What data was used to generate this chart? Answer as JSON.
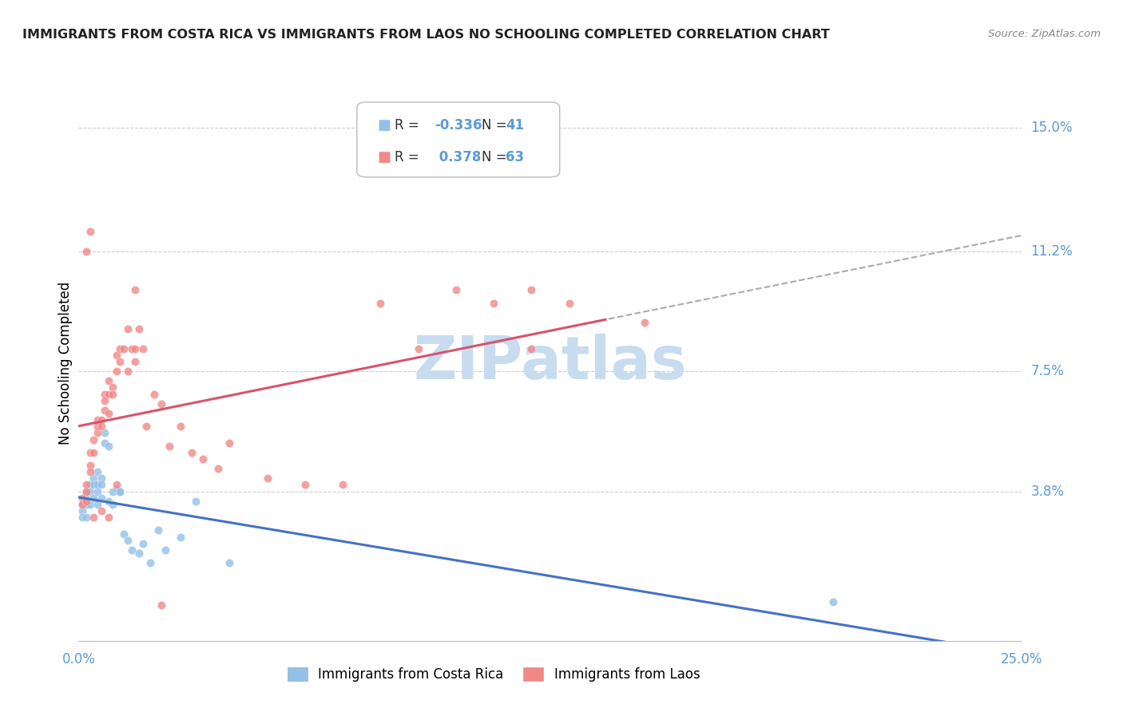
{
  "title": "IMMIGRANTS FROM COSTA RICA VS IMMIGRANTS FROM LAOS NO SCHOOLING COMPLETED CORRELATION CHART",
  "source": "Source: ZipAtlas.com",
  "ylabel": "No Schooling Completed",
  "yticks": [
    "3.8%",
    "7.5%",
    "11.2%",
    "15.0%"
  ],
  "ytick_vals": [
    0.038,
    0.075,
    0.112,
    0.15
  ],
  "xmin": 0.0,
  "xmax": 0.25,
  "ymin": -0.008,
  "ymax": 0.163,
  "legend1_R": "-0.336",
  "legend1_N": "41",
  "legend2_R": "0.378",
  "legend2_N": "63",
  "color_blue": "#92C0E8",
  "color_pink": "#F08888",
  "color_blue_line": "#4472C4",
  "color_pink_line": "#D9536A",
  "watermark_color": "#C8DCF0",
  "cr_x": [
    0.001,
    0.001,
    0.001,
    0.002,
    0.002,
    0.002,
    0.002,
    0.003,
    0.003,
    0.003,
    0.004,
    0.004,
    0.004,
    0.005,
    0.005,
    0.005,
    0.005,
    0.006,
    0.006,
    0.006,
    0.007,
    0.007,
    0.008,
    0.008,
    0.009,
    0.009,
    0.01,
    0.011,
    0.011,
    0.012,
    0.013,
    0.014,
    0.016,
    0.017,
    0.019,
    0.021,
    0.023,
    0.027,
    0.031,
    0.04,
    0.2
  ],
  "cr_y": [
    0.034,
    0.032,
    0.03,
    0.038,
    0.036,
    0.034,
    0.03,
    0.04,
    0.038,
    0.034,
    0.042,
    0.04,
    0.036,
    0.044,
    0.04,
    0.038,
    0.034,
    0.042,
    0.04,
    0.036,
    0.056,
    0.053,
    0.052,
    0.035,
    0.038,
    0.034,
    0.039,
    0.038,
    0.038,
    0.025,
    0.023,
    0.02,
    0.019,
    0.022,
    0.016,
    0.026,
    0.02,
    0.024,
    0.035,
    0.016,
    0.004
  ],
  "laos_x": [
    0.001,
    0.001,
    0.002,
    0.002,
    0.002,
    0.003,
    0.003,
    0.003,
    0.004,
    0.004,
    0.005,
    0.005,
    0.005,
    0.006,
    0.006,
    0.007,
    0.007,
    0.007,
    0.008,
    0.008,
    0.008,
    0.009,
    0.009,
    0.01,
    0.01,
    0.011,
    0.011,
    0.012,
    0.013,
    0.013,
    0.014,
    0.015,
    0.015,
    0.016,
    0.017,
    0.018,
    0.02,
    0.022,
    0.024,
    0.027,
    0.03,
    0.033,
    0.037,
    0.04,
    0.05,
    0.06,
    0.07,
    0.08,
    0.09,
    0.1,
    0.11,
    0.12,
    0.13,
    0.002,
    0.003,
    0.004,
    0.006,
    0.008,
    0.01,
    0.015,
    0.022,
    0.12,
    0.15
  ],
  "laos_y": [
    0.036,
    0.034,
    0.04,
    0.038,
    0.035,
    0.046,
    0.05,
    0.044,
    0.054,
    0.05,
    0.06,
    0.056,
    0.058,
    0.06,
    0.058,
    0.068,
    0.066,
    0.063,
    0.072,
    0.068,
    0.062,
    0.07,
    0.068,
    0.08,
    0.075,
    0.082,
    0.078,
    0.082,
    0.088,
    0.075,
    0.082,
    0.082,
    0.078,
    0.088,
    0.082,
    0.058,
    0.068,
    0.065,
    0.052,
    0.058,
    0.05,
    0.048,
    0.045,
    0.053,
    0.042,
    0.04,
    0.04,
    0.096,
    0.082,
    0.1,
    0.096,
    0.1,
    0.096,
    0.112,
    0.118,
    0.03,
    0.032,
    0.03,
    0.04,
    0.1,
    0.003,
    0.082,
    0.09
  ]
}
